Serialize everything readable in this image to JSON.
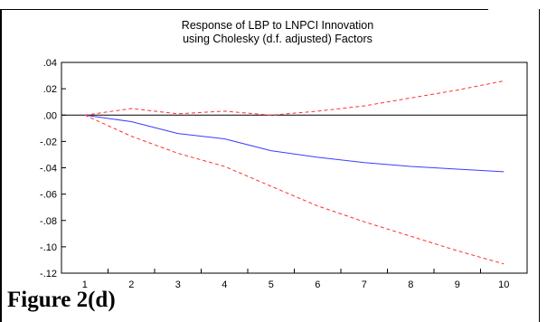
{
  "figure": {
    "caption": "Figure 2(d)"
  },
  "chart_data": {
    "type": "line",
    "title": "Response of LBP to LNPCI Innovation",
    "subtitle": "using Cholesky (d.f. adjusted) Factors",
    "xlabel": "",
    "ylabel": "",
    "x": [
      1,
      2,
      3,
      4,
      5,
      6,
      7,
      8,
      9,
      10
    ],
    "x_tick_labels": [
      "1",
      "2",
      "3",
      "4",
      "5",
      "6",
      "7",
      "8",
      "9",
      "10"
    ],
    "ylim": [
      -0.12,
      0.04
    ],
    "y_ticks": [
      0.04,
      0.02,
      0.0,
      -0.02,
      -0.04,
      -0.06,
      -0.08,
      -0.1,
      -0.12
    ],
    "y_tick_labels": [
      ".04",
      ".02",
      ".00",
      "-.02",
      "-.04",
      "-.06",
      "-.08",
      "-.10",
      "-.12"
    ],
    "zero_line": true,
    "grid": false,
    "legend": "none",
    "series": [
      {
        "role": "response",
        "style": "solid",
        "color": "#3c3cff",
        "values": [
          0.0,
          -0.005,
          -0.014,
          -0.018,
          -0.027,
          -0.032,
          -0.036,
          -0.039,
          -0.041,
          -0.043
        ]
      },
      {
        "role": "upper-band",
        "style": "dashed",
        "color": "#ff3030",
        "values": [
          0.0,
          0.005,
          0.001,
          0.003,
          0.0,
          0.003,
          0.007,
          0.013,
          0.019,
          0.026
        ]
      },
      {
        "role": "lower-band",
        "style": "dashed",
        "color": "#ff3030",
        "values": [
          0.0,
          -0.016,
          -0.029,
          -0.039,
          -0.054,
          -0.069,
          -0.081,
          -0.092,
          -0.103,
          -0.113
        ]
      }
    ]
  }
}
